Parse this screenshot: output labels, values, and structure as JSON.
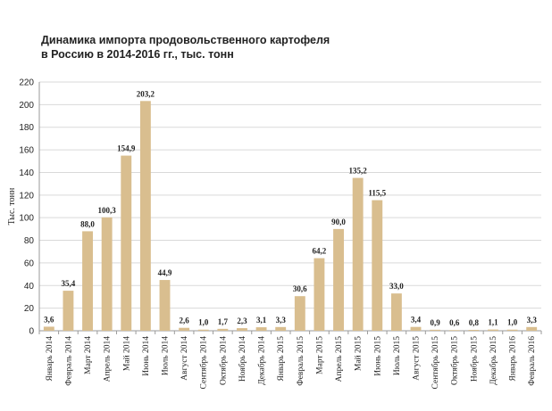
{
  "chart_data": {
    "type": "bar",
    "title_line1": "Динамика импорта продовольственного картофеля",
    "title_line2": "в Россию в 2014-2016 гг., тыс. тонн",
    "ylabel": "Тыс. тонн",
    "ylim": [
      0,
      220
    ],
    "yticks": [
      0,
      20,
      40,
      60,
      80,
      100,
      120,
      140,
      160,
      180,
      200,
      220
    ],
    "grid": true,
    "bar_color": "#D9BE8F",
    "categories": [
      "Январь 2014",
      "Февраль 2014",
      "Март 2014",
      "Апрель 2014",
      "Май 2014",
      "Июнь 2014",
      "Июль 2014",
      "Август 2014",
      "Сентябрь 2014",
      "Октябрь 2014",
      "Ноябрь 2014",
      "Декабрь 2014",
      "Январь 2015",
      "Февраль 2015",
      "Март 2015",
      "Апрель 2015",
      "Май 2015",
      "Июнь 2015",
      "Июль 2015",
      "Август 2015",
      "Сентябрь 2015",
      "Октябрь 2015",
      "Ноябрь 2015",
      "Декабрь 2015",
      "Январь 2016",
      "Февраль 2016"
    ],
    "values": [
      3.6,
      35.4,
      88.0,
      100.3,
      154.9,
      203.2,
      44.9,
      2.6,
      1.0,
      1.7,
      2.3,
      3.1,
      3.3,
      30.6,
      64.2,
      90.0,
      135.2,
      115.5,
      33.0,
      3.4,
      0.9,
      0.6,
      0.8,
      1.1,
      1.0,
      3.3
    ],
    "labels": [
      "3,6",
      "35,4",
      "88,0",
      "100,3",
      "154,9",
      "203,2",
      "44,9",
      "2,6",
      "1,0",
      "1,7",
      "2,3",
      "3,1",
      "3,3",
      "30,6",
      "64,2",
      "90,0",
      "135,2",
      "115,5",
      "33,0",
      "3,4",
      "0,9",
      "0,6",
      "0,8",
      "1,1",
      "1,0",
      "3,3"
    ]
  }
}
